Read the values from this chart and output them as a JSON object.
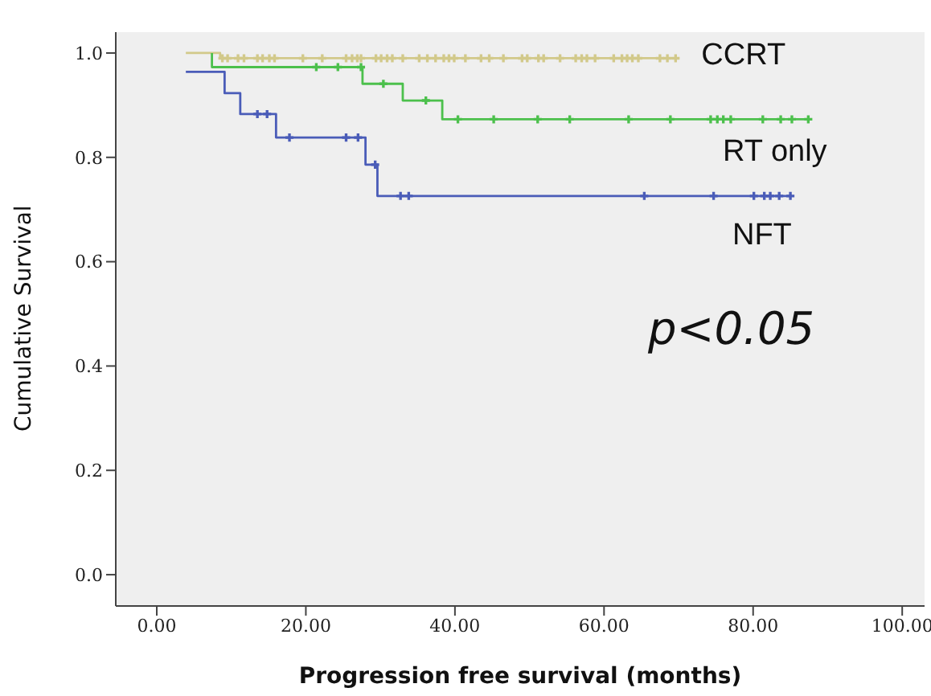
{
  "chart_data": {
    "type": "step",
    "xlabel": "Progression free survival (months)",
    "ylabel": "Cumulative Survival",
    "xlim": [
      -5.5,
      103
    ],
    "ylim": [
      -0.06,
      1.04
    ],
    "xticks": [
      {
        "value": 0,
        "label": "0.00"
      },
      {
        "value": 20,
        "label": "20.00"
      },
      {
        "value": 40,
        "label": "40.00"
      },
      {
        "value": 60,
        "label": "60.00"
      },
      {
        "value": 80,
        "label": "80.00"
      },
      {
        "value": 100,
        "label": "100.00"
      }
    ],
    "yticks": [
      {
        "value": 0,
        "label": "0.0"
      },
      {
        "value": 0.2,
        "label": "0.2"
      },
      {
        "value": 0.4,
        "label": "0.4"
      },
      {
        "value": 0.6,
        "label": "0.6"
      },
      {
        "value": 0.8,
        "label": "0.8"
      },
      {
        "value": 1,
        "label": "1.0"
      }
    ],
    "annotations": [
      "p<0.05"
    ],
    "series": [
      {
        "name": "CCRT",
        "color": "#d2c98a",
        "x": [
          3.9,
          8.5,
          69.6
        ],
        "values": [
          1.0,
          0.99,
          0.99
        ]
      },
      {
        "name": "RT only",
        "color": "#4cc04c",
        "x": [
          7.4,
          7.4,
          27.6,
          33,
          38.3,
          87.8
        ],
        "values": [
          1.0,
          0.973,
          0.941,
          0.909,
          0.873,
          0.873
        ]
      },
      {
        "name": "NFT",
        "color": "#4a5cb8",
        "x": [
          3.9,
          9.1,
          11.2,
          16,
          28,
          29.6,
          85.2
        ],
        "values": [
          0.964,
          0.923,
          0.883,
          0.838,
          0.786,
          0.726,
          0.726
        ]
      },
      {
        "type": "scatter",
        "marker": "cross",
        "color": "#d2c98a",
        "x": [
          8.8,
          9.5,
          10.9,
          11.7,
          13.5,
          14.2,
          15.1,
          15.8,
          19.6,
          22.2,
          25.4,
          26.2,
          26.9,
          27.4,
          29.4,
          30.1,
          30.9,
          31.6,
          33,
          35.2,
          36.3,
          37.4,
          38.5,
          39.2,
          39.9,
          41.4,
          43.5,
          44.6,
          46.5,
          49,
          49.7,
          51.2,
          51.9,
          54.1,
          56.2,
          57,
          57.7,
          58.8,
          61.3,
          62.4,
          63.1,
          63.8,
          64.6,
          67.5,
          68.5,
          69.6
        ],
        "values": [
          0.99,
          0.99,
          0.99,
          0.99,
          0.99,
          0.99,
          0.99,
          0.99,
          0.99,
          0.99,
          0.99,
          0.99,
          0.99,
          0.99,
          0.99,
          0.99,
          0.99,
          0.99,
          0.99,
          0.99,
          0.99,
          0.99,
          0.99,
          0.99,
          0.99,
          0.99,
          0.99,
          0.99,
          0.99,
          0.99,
          0.99,
          0.99,
          0.99,
          0.99,
          0.99,
          0.99,
          0.99,
          0.99,
          0.99,
          0.99,
          0.99,
          0.99,
          0.99,
          0.99,
          0.99,
          0.99
        ]
      },
      {
        "type": "scatter",
        "marker": "cross",
        "color": "#4cc04c",
        "x": [
          21.4,
          24.3,
          27.4,
          30.4,
          36.1,
          40.4,
          45.2,
          51.1,
          55.4,
          63.3,
          68.9,
          74.3,
          75.2,
          76,
          77,
          81.3,
          83.7,
          85.2,
          87.4
        ],
        "values": [
          0.973,
          0.973,
          0.973,
          0.941,
          0.909,
          0.873,
          0.873,
          0.873,
          0.873,
          0.873,
          0.873,
          0.873,
          0.873,
          0.873,
          0.873,
          0.873,
          0.873,
          0.873,
          0.873
        ]
      },
      {
        "type": "scatter",
        "marker": "cross",
        "color": "#4a5cb8",
        "x": [
          13.5,
          14.8,
          17.8,
          25.4,
          27,
          29.3,
          32.7,
          33.8,
          65.4,
          74.7,
          80.1,
          81.5,
          82.3,
          83.5,
          85
        ],
        "values": [
          0.883,
          0.883,
          0.838,
          0.838,
          0.838,
          0.786,
          0.726,
          0.726,
          0.726,
          0.726,
          0.726,
          0.726,
          0.726,
          0.726,
          0.726
        ]
      }
    ]
  }
}
